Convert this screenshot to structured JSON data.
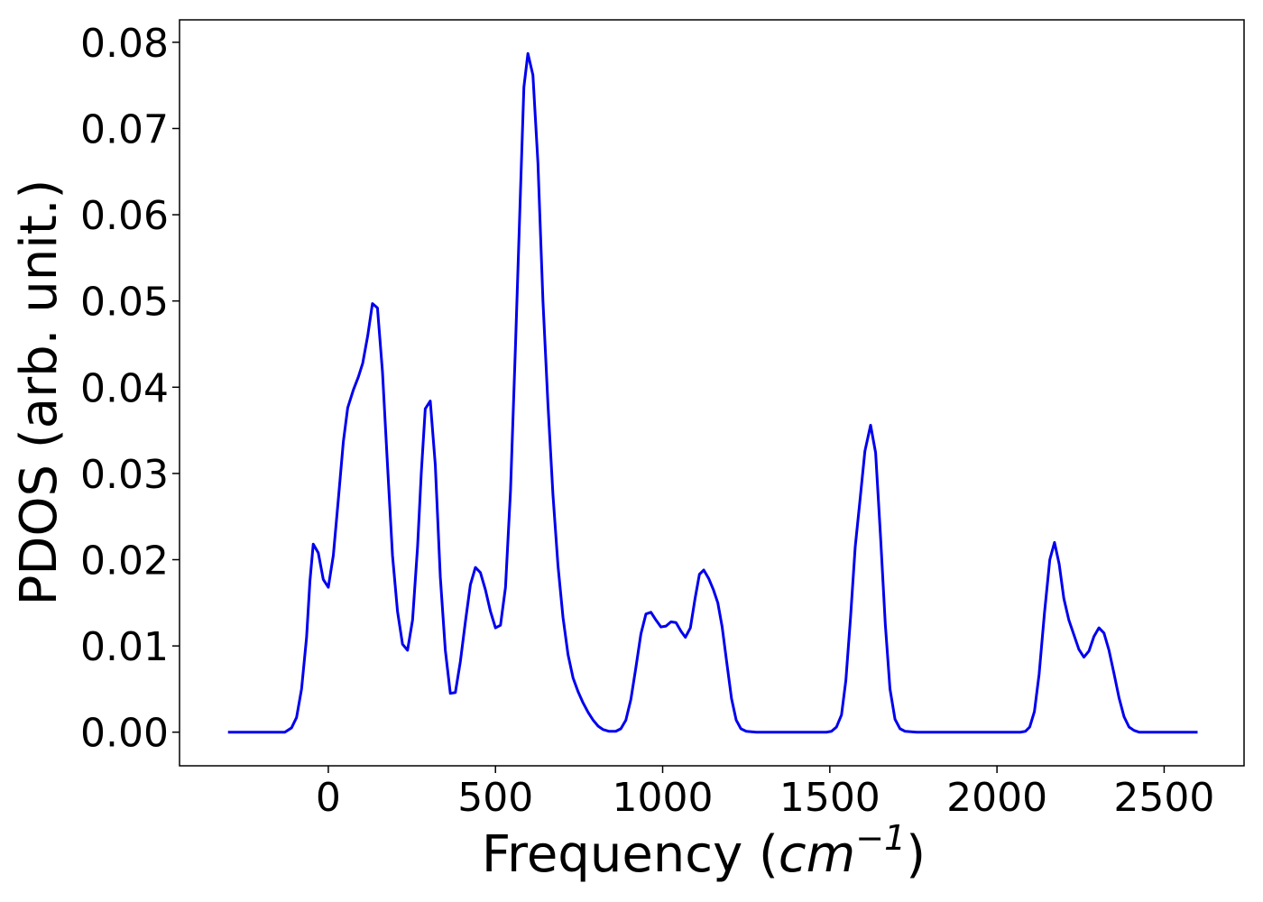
{
  "chart_data": {
    "type": "line",
    "xlabel": {
      "text": "Frequency (",
      "unit": "cm",
      "exponent": "−1",
      "close": ")"
    },
    "ylabel": "PDOS (arb. unit.)",
    "xlim": [
      -445,
      2739
    ],
    "ylim": [
      -0.0039,
      0.0826
    ],
    "xticks": [
      0,
      500,
      1000,
      1500,
      2000,
      2500
    ],
    "yticks": [
      {
        "value": 0,
        "label": "0.00"
      },
      {
        "value": 0.01,
        "label": "0.01"
      },
      {
        "value": 0.02,
        "label": "0.02"
      },
      {
        "value": 0.03,
        "label": "0.03"
      },
      {
        "value": 0.04,
        "label": "0.04"
      },
      {
        "value": 0.05,
        "label": "0.05"
      },
      {
        "value": 0.06,
        "label": "0.06"
      },
      {
        "value": 0.07,
        "label": "0.07"
      },
      {
        "value": 0.08,
        "label": "0.08"
      }
    ],
    "grid": false,
    "series": [
      {
        "color": "#0000ee",
        "x": [
          -300,
          -200,
          -130,
          -110,
          -95,
          -80,
          -65,
          -55,
          -45,
          -30,
          -15,
          0,
          15,
          30,
          45,
          58,
          75,
          90,
          103,
          118,
          132,
          147,
          162,
          177,
          192,
          207,
          222,
          237,
          252,
          267,
          278,
          290,
          305,
          320,
          335,
          350,
          365,
          380,
          395,
          410,
          425,
          440,
          455,
          470,
          485,
          500,
          515,
          530,
          545,
          560,
          575,
          585,
          597,
          612,
          627,
          642,
          657,
          672,
          687,
          702,
          717,
          732,
          747,
          762,
          777,
          792,
          807,
          822,
          840,
          860,
          875,
          890,
          905,
          920,
          935,
          950,
          965,
          980,
          995,
          1010,
          1025,
          1040,
          1055,
          1068,
          1083,
          1097,
          1110,
          1123,
          1138,
          1152,
          1165,
          1178,
          1192,
          1206,
          1220,
          1234,
          1250,
          1280,
          1490,
          1505,
          1520,
          1535,
          1548,
          1562,
          1576,
          1590,
          1605,
          1622,
          1637,
          1652,
          1666,
          1680,
          1695,
          1710,
          1725,
          1760,
          2070,
          2085,
          2098,
          2112,
          2126,
          2142,
          2158,
          2172,
          2186,
          2200,
          2215,
          2230,
          2245,
          2260,
          2275,
          2290,
          2305,
          2320,
          2335,
          2350,
          2365,
          2380,
          2395,
          2410,
          2425,
          2500,
          2600
        ],
        "values": [
          0,
          0,
          0,
          0.0005,
          0.0017,
          0.005,
          0.011,
          0.0175,
          0.0218,
          0.0208,
          0.0177,
          0.0168,
          0.0205,
          0.027,
          0.0337,
          0.0376,
          0.0397,
          0.0412,
          0.0428,
          0.046,
          0.0497,
          0.0492,
          0.0418,
          0.031,
          0.0205,
          0.014,
          0.0102,
          0.0095,
          0.013,
          0.0215,
          0.03,
          0.0375,
          0.0384,
          0.031,
          0.018,
          0.0095,
          0.0045,
          0.0046,
          0.0082,
          0.0128,
          0.0171,
          0.0191,
          0.0185,
          0.0165,
          0.014,
          0.0121,
          0.0124,
          0.0168,
          0.028,
          0.045,
          0.063,
          0.0748,
          0.0787,
          0.0762,
          0.066,
          0.05,
          0.038,
          0.0275,
          0.0193,
          0.0133,
          0.009,
          0.0063,
          0.0047,
          0.0034,
          0.0023,
          0.0014,
          0.0007,
          0.0003,
          0.0001,
          0.0001,
          0.0004,
          0.0014,
          0.0038,
          0.0075,
          0.0114,
          0.0137,
          0.0139,
          0.013,
          0.0122,
          0.0123,
          0.0128,
          0.0127,
          0.0117,
          0.011,
          0.0121,
          0.0155,
          0.0183,
          0.0188,
          0.0178,
          0.0165,
          0.015,
          0.0122,
          0.008,
          0.0039,
          0.0014,
          0.0004,
          0.0001,
          0,
          0,
          0.0001,
          0.0006,
          0.002,
          0.006,
          0.0133,
          0.0215,
          0.0268,
          0.0326,
          0.0356,
          0.0324,
          0.0225,
          0.0125,
          0.005,
          0.0015,
          0.0004,
          0.0001,
          0,
          0,
          0.0001,
          0.0006,
          0.0024,
          0.0067,
          0.0138,
          0.02,
          0.022,
          0.0195,
          0.0155,
          0.013,
          0.0113,
          0.0096,
          0.0087,
          0.0094,
          0.0111,
          0.0121,
          0.0115,
          0.0095,
          0.0068,
          0.004,
          0.0018,
          0.0006,
          0.0002,
          0,
          0,
          0
        ]
      }
    ]
  }
}
